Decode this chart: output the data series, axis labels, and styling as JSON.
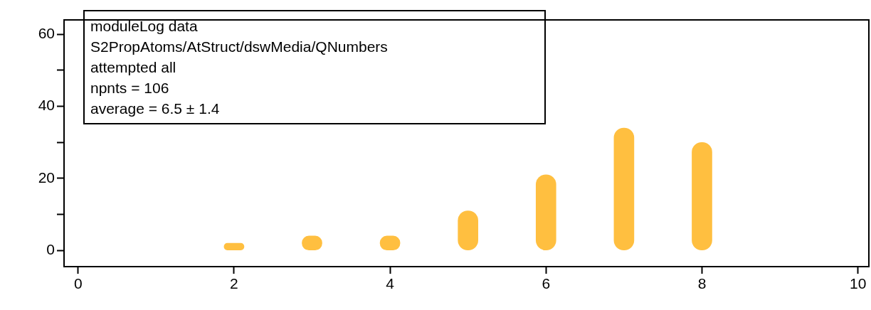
{
  "chart_data": {
    "type": "bar",
    "x": [
      2,
      3,
      4,
      5,
      6,
      7,
      8
    ],
    "values": [
      2,
      4,
      4,
      11,
      21,
      34,
      30
    ],
    "color": "#ffbf40",
    "xlim": [
      -0.18,
      10.14
    ],
    "xticks": [
      0,
      2,
      4,
      6,
      8,
      10
    ],
    "ylim": [
      -4.5,
      64
    ],
    "yticks": [
      0,
      {
        "value": 10,
        "label": null
      },
      20,
      {
        "value": 30,
        "label": null
      },
      40,
      {
        "value": 50,
        "label": null
      },
      60
    ],
    "grid": false,
    "legend": false,
    "annotations": [
      "moduleLog data",
      "S2PropAtoms/AtStruct/dswMedia/QNumbers",
      "attempted all",
      "npnts = 106",
      "average = 6.5 ± 1.4"
    ]
  }
}
